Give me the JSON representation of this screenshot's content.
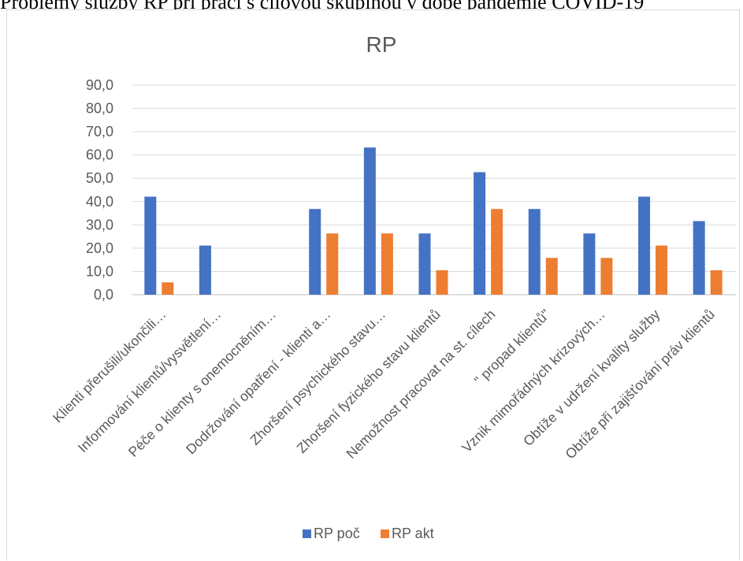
{
  "caption": "Problémy služby RP při práci s cílovou skupinou v době pandemie COVID-19",
  "chart_data": {
    "type": "bar",
    "title": "RP",
    "categories": [
      "Klienti přerušili/ukončili…",
      "Informování klientů/vysvětlení…",
      "Péče o klienty s onemocněním…",
      "Dodržování opatření - klienti a…",
      "Zhoršení psychického stavu…",
      "Zhoršení fyzického stavu klientů",
      "Nemožnost pracovat na st. cílech",
      "\" propad klientů\"",
      "Vznik mimořádných krizových…",
      "Obtíže v udržení kvality služby",
      "Obtíže při zajišťování práv klientů"
    ],
    "series": [
      {
        "name": "RP poč",
        "color": "#4472c4",
        "values": [
          42.1,
          21.1,
          0.0,
          36.8,
          63.2,
          26.3,
          52.6,
          36.8,
          26.3,
          42.1,
          31.6
        ]
      },
      {
        "name": "RP akt",
        "color": "#ed7d31",
        "values": [
          5.3,
          0.0,
          0.0,
          26.3,
          26.3,
          10.5,
          36.8,
          15.8,
          15.8,
          21.1,
          10.5
        ]
      }
    ],
    "ylim": [
      0,
      90
    ],
    "yticks": [
      "0,0",
      "10,0",
      "20,0",
      "30,0",
      "40,0",
      "50,0",
      "60,0",
      "70,0",
      "80,0",
      "90,0"
    ],
    "grid": true,
    "legend": "bottom"
  }
}
